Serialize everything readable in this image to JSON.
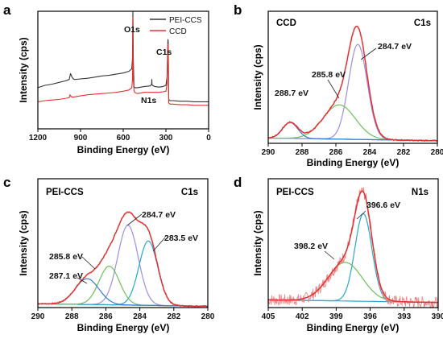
{
  "chart_data": [
    {
      "panel": "a",
      "type": "line",
      "xlabel": "Binding Energy (eV)",
      "ylabel": "Intensity (cps)",
      "xlim": [
        1200,
        0
      ],
      "x_reversed": true,
      "xticks": [
        1200,
        900,
        600,
        300,
        0
      ],
      "legend": "top-right",
      "series": [
        {
          "name": "PEI-CCS",
          "color": "#333333",
          "x": [
            1200,
            1150,
            1100,
            1050,
            1000,
            980,
            970,
            960,
            950,
            940,
            900,
            850,
            800,
            750,
            700,
            650,
            600,
            560,
            540,
            535,
            532,
            529,
            525,
            520,
            500,
            450,
            410,
            400,
            399,
            398,
            395,
            380,
            350,
            320,
            300,
            292,
            286,
            284,
            282,
            280,
            270,
            250,
            200,
            150,
            100,
            50,
            0
          ],
          "y": [
            0.35,
            0.37,
            0.38,
            0.395,
            0.41,
            0.42,
            0.47,
            0.44,
            0.425,
            0.42,
            0.425,
            0.43,
            0.44,
            0.45,
            0.455,
            0.465,
            0.475,
            0.49,
            0.51,
            0.6,
            1.0,
            0.6,
            0.36,
            0.35,
            0.35,
            0.36,
            0.365,
            0.38,
            0.42,
            0.38,
            0.37,
            0.36,
            0.355,
            0.36,
            0.37,
            0.44,
            0.76,
            0.74,
            0.5,
            0.25,
            0.24,
            0.24,
            0.235,
            0.235,
            0.23,
            0.23,
            0.23
          ]
        },
        {
          "name": "CCD",
          "color": "#e53030",
          "x": [
            1200,
            1150,
            1100,
            1050,
            1000,
            980,
            975,
            970,
            960,
            950,
            900,
            850,
            800,
            750,
            700,
            650,
            600,
            560,
            540,
            535,
            532,
            529,
            525,
            520,
            500,
            450,
            400,
            350,
            320,
            300,
            292,
            286,
            284,
            282,
            280,
            270,
            250,
            200,
            150,
            100,
            50,
            0
          ],
          "y": [
            0.23,
            0.24,
            0.245,
            0.25,
            0.26,
            0.265,
            0.29,
            0.28,
            0.27,
            0.27,
            0.28,
            0.29,
            0.295,
            0.3,
            0.305,
            0.31,
            0.32,
            0.33,
            0.35,
            0.42,
            0.95,
            0.42,
            0.33,
            0.31,
            0.3,
            0.31,
            0.31,
            0.31,
            0.315,
            0.32,
            0.38,
            0.72,
            0.7,
            0.42,
            0.22,
            0.21,
            0.21,
            0.205,
            0.205,
            0.2,
            0.2,
            0.2
          ]
        }
      ],
      "annotations": [
        {
          "text": "O1s",
          "x": 532,
          "y": 1.04
        },
        {
          "text": "C1s",
          "x": 290,
          "y": 0.82
        },
        {
          "text": "N1s",
          "x": 430,
          "y": 0.47
        }
      ]
    },
    {
      "panel": "b",
      "type": "line",
      "title_left": "CCD",
      "title_right": "C1s",
      "xlabel": "Binding Energy (eV)",
      "ylabel": "Intensity (cps)",
      "xlim": [
        290,
        280
      ],
      "x_reversed": true,
      "xticks": [
        290,
        288,
        286,
        284,
        282,
        280
      ],
      "series": [
        {
          "name": "",
          "color": "#e53030",
          "role": "envelope"
        },
        {
          "name": "",
          "color": "#9b8fe6",
          "role": "component",
          "center": 284.7,
          "height": 0.72,
          "sigma": 0.55
        },
        {
          "name": "",
          "color": "#6cbf5a",
          "role": "component",
          "center": 285.8,
          "height": 0.26,
          "sigma": 0.95
        },
        {
          "name": "",
          "color": "#2f7fd6",
          "role": "component",
          "center": 288.7,
          "height": 0.12,
          "sigma": 0.45
        },
        {
          "name": "",
          "color": "#2aa7c9",
          "role": "baseline"
        }
      ],
      "annotations": [
        {
          "text": "284.7 eV",
          "x": 284.7
        },
        {
          "text": "285.8 eV",
          "x": 285.8
        },
        {
          "text": "288.7 eV",
          "x": 288.7
        }
      ]
    },
    {
      "panel": "c",
      "type": "line",
      "title_left": "PEI-CCS",
      "title_right": "C1s",
      "xlabel": "Binding Energy (eV)",
      "ylabel": "Intensity (cps)",
      "xlim": [
        290,
        280
      ],
      "x_reversed": true,
      "xticks": [
        290,
        288,
        286,
        284,
        282,
        280
      ],
      "series": [
        {
          "name": "",
          "color": "#e53030",
          "role": "envelope"
        },
        {
          "name": "",
          "color": "#9b8fe6",
          "role": "component",
          "center": 284.7,
          "height": 0.62,
          "sigma": 0.6
        },
        {
          "name": "",
          "color": "#2aa7c9",
          "role": "component",
          "center": 283.5,
          "height": 0.5,
          "sigma": 0.55
        },
        {
          "name": "",
          "color": "#6cbf5a",
          "role": "component",
          "center": 285.8,
          "height": 0.3,
          "sigma": 0.6
        },
        {
          "name": "",
          "color": "#2f7fd6",
          "role": "component",
          "center": 287.1,
          "height": 0.2,
          "sigma": 0.7
        },
        {
          "name": "",
          "color": "#2aa7c9",
          "role": "baseline"
        }
      ],
      "annotations": [
        {
          "text": "284.7 eV",
          "x": 284.7
        },
        {
          "text": "283.5 eV",
          "x": 283.5
        },
        {
          "text": "285.8 eV",
          "x": 285.8
        },
        {
          "text": "287.1 eV",
          "x": 287.1
        }
      ]
    },
    {
      "panel": "d",
      "type": "line",
      "title_left": "PEI-CCS",
      "title_right": "N1s",
      "xlabel": "Binding Energy (eV)",
      "ylabel": "Intensity (cps)",
      "xlim": [
        405,
        390
      ],
      "x_reversed": true,
      "xticks": [
        405,
        402,
        399,
        396,
        393,
        390
      ],
      "series": [
        {
          "name": "",
          "color": "#f08080",
          "role": "raw"
        },
        {
          "name": "",
          "color": "#e53030",
          "role": "envelope"
        },
        {
          "name": "",
          "color": "#2aa7c9",
          "role": "component",
          "center": 396.6,
          "height": 0.68,
          "sigma": 0.75
        },
        {
          "name": "",
          "color": "#6cbf5a",
          "role": "component",
          "center": 398.2,
          "height": 0.3,
          "sigma": 1.5
        },
        {
          "name": "",
          "color": "#2aa7c9",
          "role": "baseline"
        }
      ],
      "annotations": [
        {
          "text": "396.6 eV",
          "x": 396.6
        },
        {
          "text": "398.2 eV",
          "x": 398.2
        }
      ]
    }
  ],
  "panel_labels": [
    "a",
    "b",
    "c",
    "d"
  ]
}
